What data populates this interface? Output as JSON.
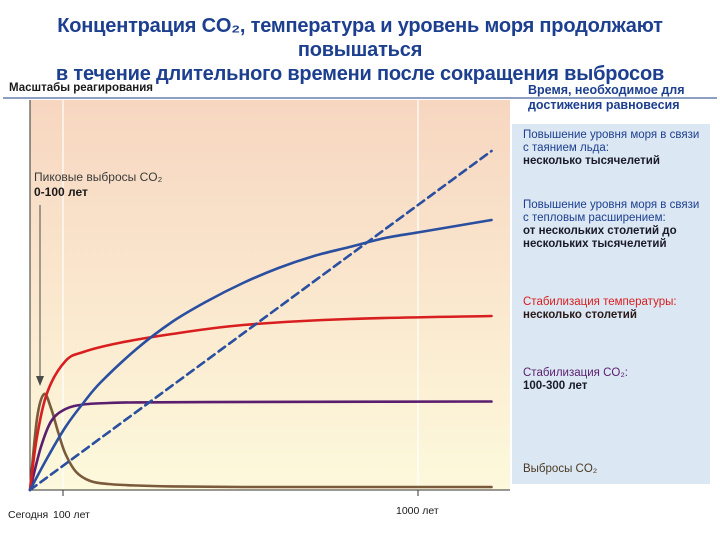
{
  "header": {
    "title_line1": "Концентрация CO₂, температура и уровень моря продолжают повышаться",
    "title_line2": "в течение длительного времени после сокращения выбросов"
  },
  "labels": {
    "left_top": "Масштабы реагирования",
    "right_top_line1": "Время, необходимое для",
    "right_top_line2": "достижения равновесия"
  },
  "chart_data": {
    "type": "line",
    "title": "Концентрация CO₂, температура и уровень моря продолжают повышаться в течение длительного времени после сокращения выбросов",
    "x_tick_labels": [
      "Сегодня",
      "100 лет",
      "1000 лет"
    ],
    "x_tick_values": [
      0,
      100,
      1000
    ],
    "xlim": [
      0,
      1300
    ],
    "ylim": [
      0,
      1
    ],
    "axis_values_unlabeled": true,
    "annotation": {
      "line1": "Пиковые выбросы CO₂",
      "line2": "0-100 лет"
    },
    "series": [
      {
        "key": "emissions",
        "name": "Выбросы CO₂",
        "color": "#7a5a3a",
        "style": "solid",
        "x": [
          0,
          20,
          40,
          60,
          80,
          100,
          130,
          170,
          220,
          300,
          400,
          600,
          900,
          1300
        ],
        "y": [
          0.0,
          0.24,
          0.32,
          0.27,
          0.19,
          0.12,
          0.06,
          0.03,
          0.02,
          0.015,
          0.012,
          0.01,
          0.01,
          0.01
        ]
      },
      {
        "key": "co2",
        "name": "Стабилизация CO₂",
        "color": "#5a1e6e",
        "style": "solid",
        "x": [
          0,
          30,
          60,
          100,
          150,
          220,
          300,
          500,
          800,
          1300
        ],
        "y": [
          0.0,
          0.14,
          0.23,
          0.27,
          0.285,
          0.29,
          0.292,
          0.293,
          0.294,
          0.295
        ]
      },
      {
        "key": "temperature",
        "name": "Стабилизация температуры",
        "color": "#d81e1e",
        "style": "solid",
        "x": [
          0,
          20,
          50,
          100,
          150,
          250,
          400,
          600,
          900,
          1300
        ],
        "y": [
          0.0,
          0.18,
          0.33,
          0.43,
          0.46,
          0.49,
          0.52,
          0.55,
          0.57,
          0.58
        ]
      },
      {
        "key": "sea_thermal",
        "name": "Повышение уровня моря в связи с тепловым расширением",
        "color": "#2a4fa0",
        "style": "solid",
        "x": [
          0,
          50,
          100,
          150,
          200,
          300,
          400,
          500,
          600,
          700,
          800,
          900,
          1000,
          1100,
          1200,
          1300
        ],
        "y": [
          0.0,
          0.11,
          0.21,
          0.29,
          0.36,
          0.47,
          0.56,
          0.63,
          0.69,
          0.74,
          0.78,
          0.81,
          0.84,
          0.86,
          0.88,
          0.9
        ]
      },
      {
        "key": "sea_ice",
        "name": "Повышение уровня моря в связи с таянием льда",
        "color": "#2a4fa0",
        "style": "dashed",
        "x": [
          0,
          1300
        ],
        "y": [
          0.0,
          1.13
        ]
      }
    ]
  },
  "legend": {
    "ice_line1": "Повышение уровня моря в связи",
    "ice_line2": "с таянием льда:",
    "ice_time": "несколько тысячелетий",
    "thermal_line1": "Повышение уровня моря в связи",
    "thermal_line2": "с тепловым расширением:",
    "thermal_time1": "от нескольких столетий до",
    "thermal_time2": "нескольких тысячелетий",
    "temp_line1": "Стабилизация температуры:",
    "temp_time": "несколько столетий",
    "co2_line1": "Стабилизация CO₂:",
    "co2_time": "100-300 лет",
    "emissions": "Выбросы CO₂"
  },
  "colors": {
    "plot_bg_top": "#f7d6c0",
    "plot_bg_bottom": "#fdf9dc",
    "title": "#1d3f8f"
  }
}
